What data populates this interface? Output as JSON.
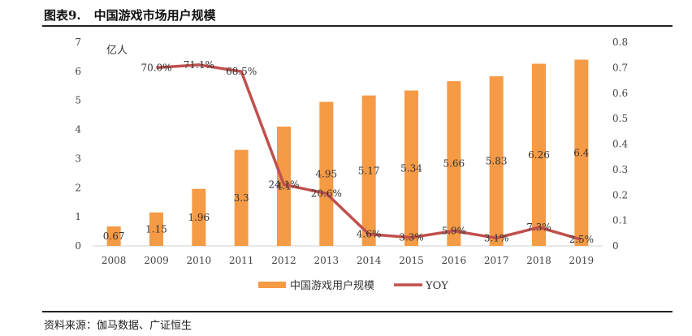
{
  "figure": {
    "number": "图表9.",
    "title": "中国游戏市场用户规模",
    "source": "资料来源：伽马数据、广证恒生"
  },
  "chart_data": {
    "type": "bar+line",
    "categories": [
      "2008",
      "2009",
      "2010",
      "2011",
      "2012",
      "2013",
      "2014",
      "2015",
      "2016",
      "2017",
      "2018",
      "2019"
    ],
    "unit_label": "亿人",
    "y_left": {
      "min": 0,
      "max": 7,
      "ticks": [
        "0",
        "1",
        "2",
        "3",
        "4",
        "5",
        "6",
        "7"
      ]
    },
    "y_right": {
      "min": 0,
      "max": 0.8,
      "ticks": [
        "0",
        "0.1",
        "0.2",
        "0.3",
        "0.4",
        "0.5",
        "0.6",
        "0.7",
        "0.8"
      ]
    },
    "series": [
      {
        "name": "中国游戏用户规模",
        "type": "bar",
        "axis": "left",
        "color": "#F59A45",
        "values": [
          0.67,
          1.15,
          1.96,
          3.3,
          4.1,
          4.95,
          5.17,
          5.34,
          5.66,
          5.83,
          6.26,
          6.4
        ],
        "labels": [
          "0.67",
          "1.15",
          "1.96",
          "3.3",
          "4.1",
          "4.95",
          "5.17",
          "5.34",
          "5.66",
          "5.83",
          "6.26",
          "6.4"
        ]
      },
      {
        "name": "YOY",
        "type": "line",
        "axis": "right",
        "color": "#C0504D",
        "values": [
          null,
          0.7,
          0.711,
          0.685,
          0.241,
          0.206,
          0.046,
          0.033,
          0.059,
          0.031,
          0.073,
          0.025
        ],
        "labels": [
          "",
          "70.0%",
          "71.1%",
          "68.5%",
          "24.1%",
          "20.6%",
          "4.6%",
          "3.3%",
          "5.9%",
          "3.1%",
          "7.3%",
          "2.5%"
        ]
      }
    ],
    "legend_position": "bottom",
    "grid": false
  }
}
